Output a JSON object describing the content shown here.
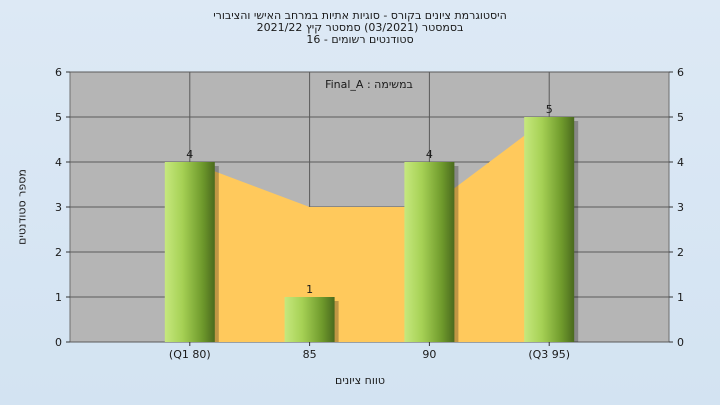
{
  "title_lines": [
    "היסטוגרמת ציונים בקורס - סוגיות אתיות במרחב האישי והציבורי",
    "בסמסטר  (03/2021)  סמסטר קיץ  2021/22",
    "סטודנטים רשומים - 16"
  ],
  "chart_data": {
    "type": "bar",
    "categories": [
      "(Q1 80)",
      "85",
      "90",
      "(Q3 95)"
    ],
    "values": [
      4,
      1,
      4,
      5
    ],
    "data_labels": [
      "4",
      "1",
      "4",
      "5"
    ],
    "xlabel": "טווח ציונים",
    "ylabel": "מספר סטודנטים",
    "ylim": [
      0,
      6
    ],
    "yticks": [
      "0",
      "1",
      "2",
      "3",
      "4",
      "5",
      "6"
    ],
    "annotation": "במשימה : Final_A",
    "grid": true,
    "background_area": {
      "values": [
        4,
        3,
        3,
        5
      ],
      "color": "#ffc95c"
    },
    "colors": {
      "plot_bg": "#b5b5b5",
      "bar_light": "#c6e87e",
      "bar_mid": "#8fbf3a",
      "bar_dark": "#4a6a1e",
      "area": "#ffc95c"
    }
  }
}
